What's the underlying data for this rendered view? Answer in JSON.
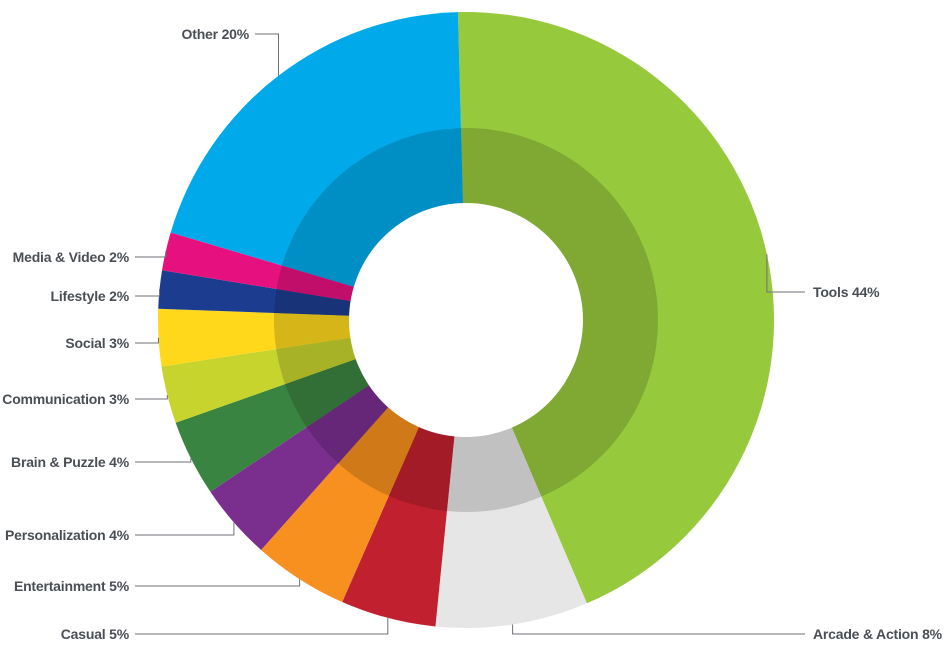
{
  "chart_data": {
    "type": "pie",
    "categories": [
      "Tools",
      "Arcade & Action",
      "Casual",
      "Entertainment",
      "Personalization",
      "Brain & Puzzle",
      "Communication",
      "Social",
      "Lifestyle",
      "Media & Video",
      "Other"
    ],
    "values": [
      44,
      8,
      5,
      5,
      4,
      4,
      3,
      3,
      2,
      2,
      20
    ],
    "value_suffix": "%",
    "colors": [
      "#97c93d",
      "#e6e6e6",
      "#c1202f",
      "#f7901e",
      "#7a2f8f",
      "#3a8441",
      "#c8d42e",
      "#ffd81c",
      "#1c3d8f",
      "#e6117f",
      "#00aaea"
    ],
    "labels": [
      "Tools 44%",
      "Arcade & Action 8%",
      "Casual 5%",
      "Entertainment 5%",
      "Personalization 4%",
      "Brain & Puzzle 4%",
      "Communication 3%",
      "Social 3%",
      "Lifestyle 2%",
      "Media & Video 2%",
      "Other 20%"
    ],
    "legend": "none",
    "style": "donut"
  }
}
